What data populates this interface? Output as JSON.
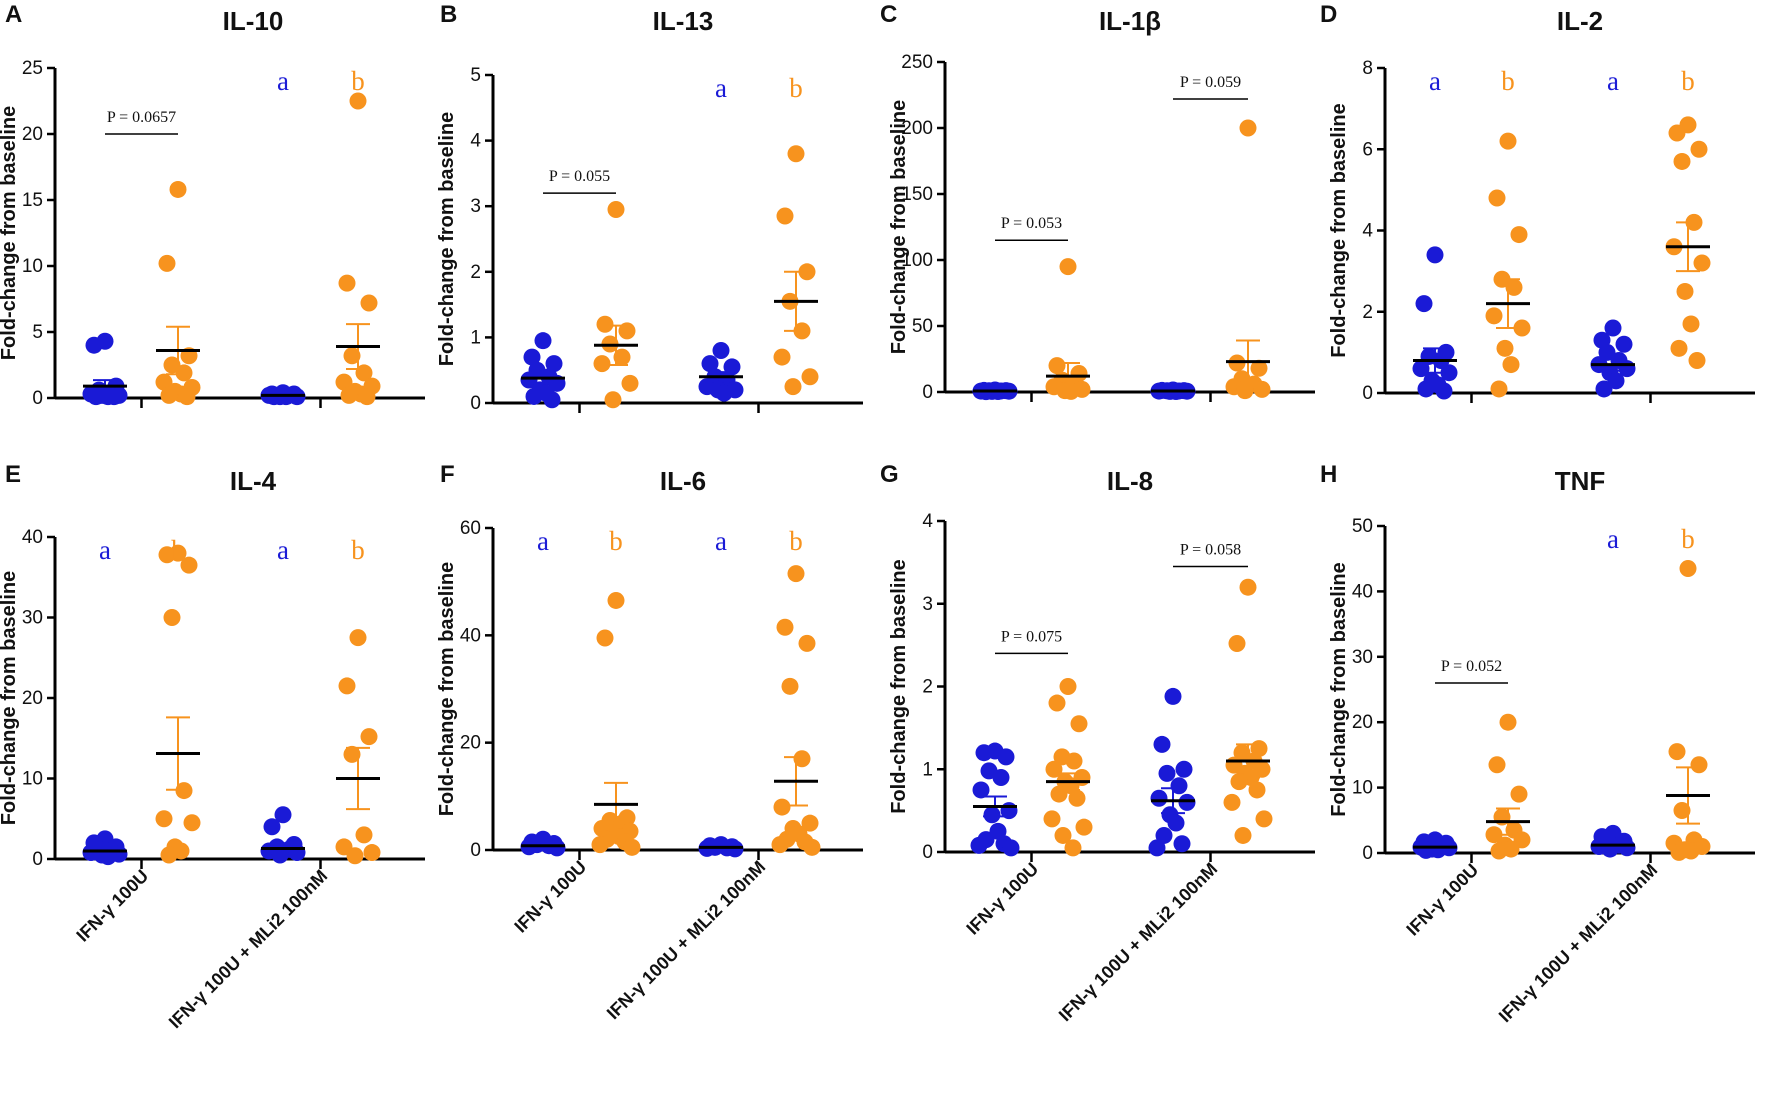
{
  "colors": {
    "control": "#1a1ad6",
    "treated": "#f7931e",
    "axis": "#000000"
  },
  "group_labels": [
    "IFN-γ 100U",
    "IFN-γ 100U + MLi2 100nM"
  ],
  "chart_data": [
    {
      "type": "scatter",
      "panel": "A",
      "title": "IL-10",
      "ylabel": "Fold-change from baseline",
      "ylim": [
        0,
        25
      ],
      "yticks": [
        0,
        5,
        10,
        15,
        20,
        25
      ],
      "categories": [
        "IFN-γ 100U",
        "IFN-γ 100U + MLi2 100nM"
      ],
      "series": [
        {
          "name": "IFN-γ 100U, blue",
          "group": 0,
          "color": "blue",
          "values": [
            4.3,
            4.0,
            0.9,
            0.6,
            0.4,
            0.3,
            0.2,
            0.2,
            0.1,
            0.1,
            0.1
          ],
          "mean": 0.9,
          "sem": 0.45
        },
        {
          "name": "IFN-γ 100U, orange",
          "group": 0,
          "color": "orange",
          "values": [
            15.8,
            10.2,
            3.2,
            2.5,
            1.9,
            1.2,
            0.8,
            0.5,
            0.3,
            0.2,
            0.1
          ],
          "mean": 3.6,
          "sem": 1.8
        },
        {
          "name": "IFN-γ 100U + MLi2 100nM, blue",
          "group": 1,
          "color": "blue",
          "values": [
            0.4,
            0.3,
            0.3,
            0.2,
            0.2,
            0.2,
            0.1,
            0.1,
            0.1,
            0.1
          ],
          "mean": 0.2,
          "sem": 0.05
        },
        {
          "name": "IFN-γ 100U + MLi2 100nM, orange",
          "group": 1,
          "color": "orange",
          "values": [
            22.5,
            8.7,
            7.2,
            3.2,
            1.9,
            1.2,
            0.9,
            0.5,
            0.3,
            0.2,
            0.1
          ],
          "mean": 3.9,
          "sem": 1.7
        }
      ],
      "annotations": [
        {
          "text": "P = 0.0657",
          "group": 0,
          "y": 20
        }
      ],
      "letters": [
        {
          "group": 1,
          "a": "a",
          "b": "b"
        }
      ]
    },
    {
      "type": "scatter",
      "panel": "B",
      "title": "IL-13",
      "ylabel": "Fold-change from baseline",
      "ylim": [
        0,
        5
      ],
      "yticks": [
        0,
        1,
        2,
        3,
        4,
        5
      ],
      "categories": [
        "IFN-γ 100U",
        "IFN-γ 100U + MLi2 100nM"
      ],
      "series": [
        {
          "name": "IFN-γ 100U, blue",
          "group": 0,
          "color": "blue",
          "values": [
            0.95,
            0.7,
            0.6,
            0.5,
            0.4,
            0.35,
            0.3,
            0.2,
            0.15,
            0.1,
            0.05
          ],
          "mean": 0.38,
          "sem": 0.08
        },
        {
          "name": "IFN-γ 100U, orange",
          "group": 0,
          "color": "orange",
          "values": [
            2.95,
            1.2,
            1.1,
            0.9,
            0.7,
            0.6,
            0.3,
            0.05
          ],
          "mean": 0.88,
          "sem": 0.3
        },
        {
          "name": "IFN-γ 100U + MLi2 100nM, blue",
          "group": 1,
          "color": "blue",
          "values": [
            0.8,
            0.6,
            0.55,
            0.4,
            0.35,
            0.25,
            0.2,
            0.2,
            0.15
          ],
          "mean": 0.4,
          "sem": 0.07
        },
        {
          "name": "IFN-γ 100U + MLi2 100nM, orange",
          "group": 1,
          "color": "orange",
          "values": [
            3.8,
            2.85,
            2.0,
            1.55,
            1.1,
            0.7,
            0.4,
            0.25
          ],
          "mean": 1.55,
          "sem": 0.45
        }
      ],
      "annotations": [
        {
          "text": "P = 0.055",
          "group": 0,
          "y": 3.2
        }
      ],
      "letters": [
        {
          "group": 1,
          "a": "a",
          "b": "b"
        }
      ]
    },
    {
      "type": "scatter",
      "panel": "C",
      "title": "IL-1β",
      "ylabel": "Fold-change from baseline",
      "ylim": [
        0,
        250
      ],
      "yticks": [
        0,
        50,
        100,
        150,
        200,
        250
      ],
      "categories": [
        "IFN-γ 100U",
        "IFN-γ 100U + MLi2 100nM"
      ],
      "series": [
        {
          "name": "IFN-γ 100U, blue",
          "group": 0,
          "color": "blue",
          "values": [
            1.5,
            1.2,
            1,
            0.9,
            0.8,
            0.7,
            0.6,
            0.5,
            0.4,
            0.3
          ],
          "mean": 0.8,
          "sem": 0.1
        },
        {
          "name": "IFN-γ 100U, orange",
          "group": 0,
          "color": "orange",
          "values": [
            95,
            20,
            14,
            9,
            6,
            4,
            2,
            1,
            0.5
          ],
          "mean": 12,
          "sem": 10
        },
        {
          "name": "IFN-γ 100U + MLi2 100nM, blue",
          "group": 1,
          "color": "blue",
          "values": [
            1.5,
            1.2,
            1,
            0.9,
            0.8,
            0.7,
            0.6,
            0.5,
            0.4
          ],
          "mean": 0.8,
          "sem": 0.1
        },
        {
          "name": "IFN-γ 100U + MLi2 100nM, orange",
          "group": 1,
          "color": "orange",
          "values": [
            200,
            22,
            18,
            10,
            6,
            4,
            2,
            1
          ],
          "mean": 23,
          "sem": 16
        }
      ],
      "annotations": [
        {
          "text": "P = 0.053",
          "group": 0,
          "y": 115
        },
        {
          "text": "P = 0.059",
          "group": 1,
          "y": 222
        }
      ],
      "letters": []
    },
    {
      "type": "scatter",
      "panel": "D",
      "title": "IL-2",
      "ylabel": "Fold-change from baseline",
      "ylim": [
        0,
        8
      ],
      "yticks": [
        0,
        2,
        4,
        6,
        8
      ],
      "categories": [
        "IFN-γ 100U",
        "IFN-γ 100U + MLi2 100nM"
      ],
      "series": [
        {
          "name": "IFN-γ 100U, blue",
          "group": 0,
          "color": "blue",
          "values": [
            3.4,
            2.2,
            1.0,
            0.9,
            0.8,
            0.6,
            0.5,
            0.3,
            0.2,
            0.1,
            0.05
          ],
          "mean": 0.8,
          "sem": 0.3
        },
        {
          "name": "IFN-γ 100U, orange",
          "group": 0,
          "color": "orange",
          "values": [
            6.2,
            4.8,
            3.9,
            2.8,
            2.6,
            1.9,
            1.6,
            1.1,
            0.7,
            0.1
          ],
          "mean": 2.2,
          "sem": 0.6
        },
        {
          "name": "IFN-γ 100U + MLi2 100nM, blue",
          "group": 1,
          "color": "blue",
          "values": [
            1.6,
            1.3,
            1.2,
            1.0,
            0.8,
            0.7,
            0.6,
            0.5,
            0.3,
            0.1
          ],
          "mean": 0.7,
          "sem": 0.15
        },
        {
          "name": "IFN-γ 100U + MLi2 100nM, orange",
          "group": 1,
          "color": "orange",
          "values": [
            6.6,
            6.4,
            6.0,
            5.7,
            4.2,
            3.6,
            3.2,
            2.5,
            1.7,
            1.1,
            0.8
          ],
          "mean": 3.6,
          "sem": 0.6
        }
      ],
      "annotations": [],
      "letters": [
        {
          "group": 0,
          "a": "a",
          "b": "b"
        },
        {
          "group": 1,
          "a": "a",
          "b": "b"
        }
      ]
    },
    {
      "type": "scatter",
      "panel": "E",
      "title": "IL-4",
      "ylabel": "Fold-change from baseline",
      "ylim": [
        0,
        40
      ],
      "yticks": [
        0,
        10,
        20,
        30,
        40
      ],
      "categories": [
        "IFN-γ 100U",
        "IFN-γ 100U + MLi2 100nM"
      ],
      "series": [
        {
          "name": "IFN-γ 100U, blue",
          "group": 0,
          "color": "blue",
          "values": [
            2.5,
            2.0,
            1.5,
            1.2,
            1.0,
            0.8,
            0.6,
            0.5,
            0.3
          ],
          "mean": 1.0,
          "sem": 0.3
        },
        {
          "name": "IFN-γ 100U, orange",
          "group": 0,
          "color": "orange",
          "values": [
            38,
            37.8,
            36.5,
            30,
            8.5,
            5,
            4.5,
            1.5,
            1,
            0.5
          ],
          "mean": 13.1,
          "sem": 4.5
        },
        {
          "name": "IFN-γ 100U + MLi2 100nM, blue",
          "group": 1,
          "color": "blue",
          "values": [
            5.5,
            4.0,
            1.8,
            1.5,
            1.2,
            1.0,
            0.8,
            0.5
          ],
          "mean": 1.3,
          "sem": 0.6
        },
        {
          "name": "IFN-γ 100U + MLi2 100nM, orange",
          "group": 1,
          "color": "orange",
          "values": [
            27.5,
            21.5,
            15.2,
            13,
            3,
            1.5,
            0.8,
            0.4
          ],
          "mean": 10,
          "sem": 3.8
        }
      ],
      "annotations": [],
      "letters": [
        {
          "group": 0,
          "a": "a",
          "b": "b"
        },
        {
          "group": 1,
          "a": "a",
          "b": "b"
        }
      ]
    },
    {
      "type": "scatter",
      "panel": "F",
      "title": "IL-6",
      "ylabel": "Fold-change from baseline",
      "ylim": [
        0,
        60
      ],
      "yticks": [
        0,
        20,
        40,
        60
      ],
      "categories": [
        "IFN-γ 100U",
        "IFN-γ 100U + MLi2 100nM"
      ],
      "series": [
        {
          "name": "IFN-γ 100U, blue",
          "group": 0,
          "color": "blue",
          "values": [
            2.0,
            1.5,
            1.2,
            1.0,
            0.8,
            0.6,
            0.4
          ],
          "mean": 0.8,
          "sem": 0.2
        },
        {
          "name": "IFN-γ 100U, orange",
          "group": 0,
          "color": "orange",
          "values": [
            46.5,
            39.5,
            6,
            5.5,
            5,
            4,
            3.5,
            3,
            2.5,
            2,
            1.5,
            1,
            0.5
          ],
          "mean": 8.5,
          "sem": 4
        },
        {
          "name": "IFN-γ 100U + MLi2 100nM, blue",
          "group": 1,
          "color": "blue",
          "values": [
            1.0,
            0.8,
            0.6,
            0.5,
            0.4,
            0.3,
            0.2
          ],
          "mean": 0.5,
          "sem": 0.1
        },
        {
          "name": "IFN-γ 100U + MLi2 100nM, orange",
          "group": 1,
          "color": "orange",
          "values": [
            51.5,
            41.5,
            38.5,
            30.5,
            17,
            8,
            5,
            4,
            3,
            2,
            1.5,
            1,
            0.5
          ],
          "mean": 12.8,
          "sem": 4.5
        }
      ],
      "annotations": [],
      "letters": [
        {
          "group": 0,
          "a": "a",
          "b": "b"
        },
        {
          "group": 1,
          "a": "a",
          "b": "b"
        }
      ]
    },
    {
      "type": "scatter",
      "panel": "G",
      "title": "IL-8",
      "ylabel": "Fold-change from baseline",
      "ylim": [
        0,
        4
      ],
      "yticks": [
        0,
        1,
        2,
        3,
        4
      ],
      "categories": [
        "IFN-γ 100U",
        "IFN-γ 100U + MLi2 100nM"
      ],
      "series": [
        {
          "name": "IFN-γ 100U, blue",
          "group": 0,
          "color": "blue",
          "values": [
            1.22,
            1.2,
            1.15,
            0.98,
            0.9,
            0.75,
            0.5,
            0.45,
            0.25,
            0.15,
            0.1,
            0.08,
            0.05
          ],
          "mean": 0.55,
          "sem": 0.12
        },
        {
          "name": "IFN-γ 100U, orange",
          "group": 0,
          "color": "orange",
          "values": [
            2.0,
            1.8,
            1.55,
            1.15,
            1.1,
            1.0,
            0.9,
            0.85,
            0.8,
            0.7,
            0.65,
            0.4,
            0.3,
            0.2,
            0.05
          ],
          "mean": 0.85,
          "sem": 0.1
        },
        {
          "name": "IFN-γ 100U + MLi2 100nM, blue",
          "group": 1,
          "color": "blue",
          "values": [
            1.88,
            1.3,
            1.0,
            0.95,
            0.8,
            0.65,
            0.6,
            0.45,
            0.35,
            0.2,
            0.1,
            0.05
          ],
          "mean": 0.62,
          "sem": 0.15
        },
        {
          "name": "IFN-γ 100U + MLi2 100nM, orange",
          "group": 1,
          "color": "orange",
          "values": [
            3.2,
            2.52,
            1.25,
            1.2,
            1.1,
            1.05,
            1.0,
            0.95,
            0.9,
            0.85,
            0.75,
            0.6,
            0.4,
            0.2
          ],
          "mean": 1.1,
          "sem": 0.2
        }
      ],
      "annotations": [
        {
          "text": "P = 0.075",
          "group": 0,
          "y": 2.4
        },
        {
          "text": "P = 0.058",
          "group": 1,
          "y": 3.45
        }
      ],
      "letters": []
    },
    {
      "type": "scatter",
      "panel": "H",
      "title": "TNF",
      "ylabel": "Fold-change from baseline",
      "ylim": [
        0,
        50
      ],
      "yticks": [
        0,
        10,
        20,
        30,
        40,
        50
      ],
      "categories": [
        "IFN-γ 100U",
        "IFN-γ 100U + MLi2 100nM"
      ],
      "series": [
        {
          "name": "IFN-γ 100U, blue",
          "group": 0,
          "color": "blue",
          "values": [
            2.0,
            1.7,
            1.5,
            1.2,
            1.0,
            0.9,
            0.8,
            0.6,
            0.5,
            0.4
          ],
          "mean": 0.9,
          "sem": 0.2
        },
        {
          "name": "IFN-γ 100U, orange",
          "group": 0,
          "color": "orange",
          "values": [
            20,
            13.5,
            9,
            5.5,
            3.5,
            2.8,
            2,
            1.2,
            0.6,
            0.3
          ],
          "mean": 4.8,
          "sem": 2.0
        },
        {
          "name": "IFN-γ 100U + MLi2 100nM, blue",
          "group": 1,
          "color": "blue",
          "values": [
            3.0,
            2.5,
            1.8,
            1.5,
            1.2,
            1.0,
            0.8,
            0.6
          ],
          "mean": 1.2,
          "sem": 0.3
        },
        {
          "name": "IFN-γ 100U + MLi2 100nM, orange",
          "group": 1,
          "color": "orange",
          "values": [
            43.5,
            15.5,
            13.5,
            6.5,
            2,
            1.5,
            1,
            0.5,
            0.3,
            0.1
          ],
          "mean": 8.8,
          "sem": 4.3
        }
      ],
      "annotations": [
        {
          "text": "P = 0.052",
          "group": 0,
          "y": 26
        }
      ],
      "letters": [
        {
          "group": 1,
          "a": "a",
          "b": "b"
        }
      ]
    }
  ]
}
